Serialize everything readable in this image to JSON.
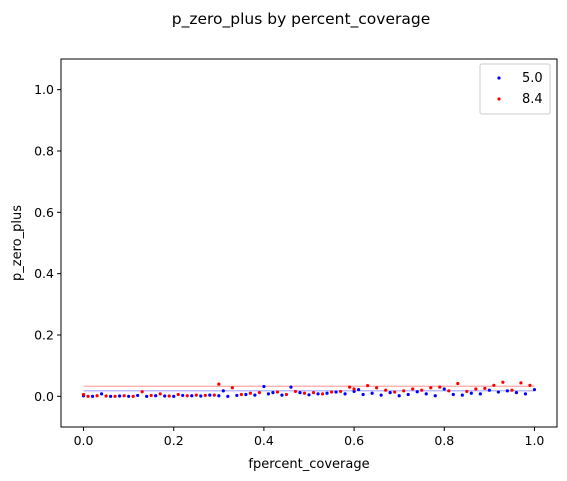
{
  "chart_data": {
    "type": "scatter",
    "title": "p_zero_plus by percent_coverage",
    "xlabel": "fpercent_coverage",
    "ylabel": "p_zero_plus",
    "xlim": [
      -0.05,
      1.05
    ],
    "ylim": [
      -0.1,
      1.1
    ],
    "xticks": [
      0.0,
      0.2,
      0.4,
      0.6,
      0.8,
      1.0
    ],
    "xtick_labels": [
      "0.0",
      "0.2",
      "0.4",
      "0.6",
      "0.8",
      "1.0"
    ],
    "yticks": [
      0.0,
      0.2,
      0.4,
      0.6,
      0.8,
      1.0
    ],
    "ytick_labels": [
      "0.0",
      "0.2",
      "0.4",
      "0.6",
      "0.8",
      "1.0"
    ],
    "grid": false,
    "legend_position": "top-right",
    "series": [
      {
        "name": "5.0",
        "color": "#0000ff",
        "mean_line": 0.018,
        "x": [
          0.0,
          0.02,
          0.04,
          0.06,
          0.08,
          0.1,
          0.12,
          0.14,
          0.16,
          0.18,
          0.2,
          0.22,
          0.24,
          0.26,
          0.28,
          0.3,
          0.31,
          0.32,
          0.34,
          0.36,
          0.38,
          0.4,
          0.41,
          0.42,
          0.44,
          0.46,
          0.48,
          0.5,
          0.52,
          0.54,
          0.56,
          0.58,
          0.6,
          0.61,
          0.62,
          0.64,
          0.66,
          0.68,
          0.7,
          0.72,
          0.74,
          0.76,
          0.78,
          0.8,
          0.82,
          0.84,
          0.86,
          0.88,
          0.9,
          0.92,
          0.94,
          0.96,
          0.98,
          1.0
        ],
        "y": [
          0.002,
          0.0,
          0.008,
          0.0,
          0.001,
          0.0,
          0.003,
          0.0,
          0.002,
          0.001,
          0.0,
          0.003,
          0.002,
          0.001,
          0.004,
          0.002,
          0.018,
          0.0,
          0.003,
          0.006,
          0.004,
          0.032,
          0.008,
          0.012,
          0.004,
          0.03,
          0.012,
          0.005,
          0.008,
          0.01,
          0.014,
          0.008,
          0.016,
          0.022,
          0.006,
          0.01,
          0.004,
          0.012,
          0.002,
          0.006,
          0.015,
          0.008,
          0.002,
          0.024,
          0.006,
          0.004,
          0.01,
          0.008,
          0.02,
          0.014,
          0.018,
          0.012,
          0.008,
          0.022
        ]
      },
      {
        "name": "8.4",
        "color": "#ff0000",
        "mean_line": 0.033,
        "x": [
          0.0,
          0.01,
          0.03,
          0.05,
          0.07,
          0.09,
          0.11,
          0.13,
          0.15,
          0.17,
          0.19,
          0.21,
          0.23,
          0.25,
          0.27,
          0.29,
          0.3,
          0.33,
          0.35,
          0.37,
          0.39,
          0.43,
          0.45,
          0.47,
          0.49,
          0.51,
          0.53,
          0.55,
          0.57,
          0.59,
          0.6,
          0.63,
          0.65,
          0.67,
          0.69,
          0.71,
          0.73,
          0.75,
          0.77,
          0.79,
          0.81,
          0.83,
          0.85,
          0.87,
          0.89,
          0.91,
          0.93,
          0.95,
          0.97,
          0.99
        ],
        "y": [
          0.006,
          0.0,
          0.002,
          0.001,
          0.0,
          0.002,
          0.0,
          0.015,
          0.003,
          0.008,
          0.001,
          0.006,
          0.002,
          0.004,
          0.003,
          0.004,
          0.04,
          0.028,
          0.006,
          0.01,
          0.012,
          0.014,
          0.006,
          0.016,
          0.01,
          0.012,
          0.008,
          0.014,
          0.016,
          0.03,
          0.024,
          0.035,
          0.028,
          0.02,
          0.014,
          0.018,
          0.024,
          0.02,
          0.028,
          0.03,
          0.018,
          0.042,
          0.016,
          0.024,
          0.026,
          0.036,
          0.046,
          0.02,
          0.044,
          0.036
        ]
      }
    ]
  }
}
